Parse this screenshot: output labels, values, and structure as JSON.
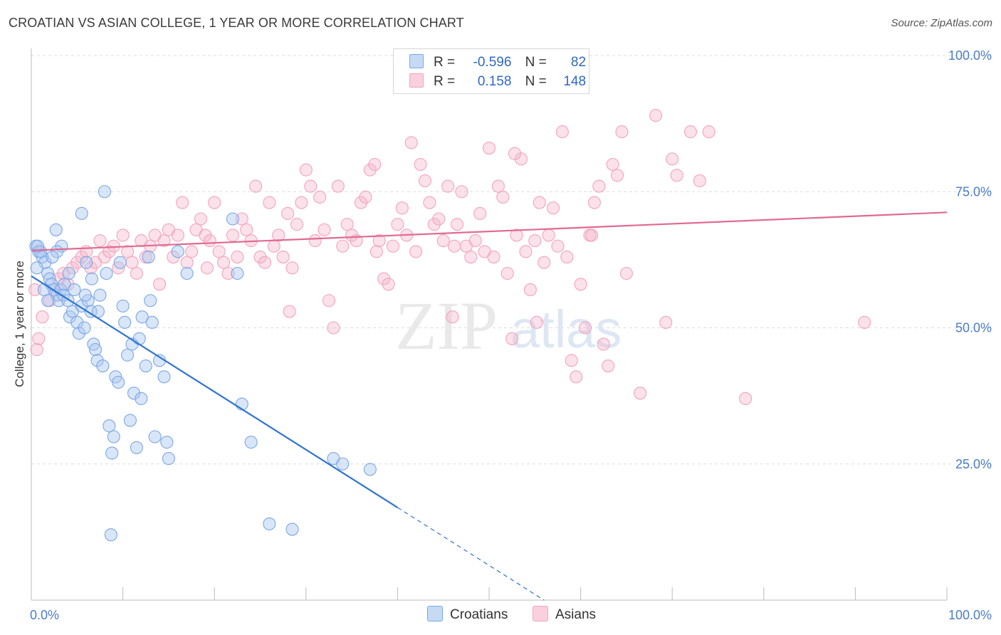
{
  "title": "CROATIAN VS ASIAN COLLEGE, 1 YEAR OR MORE CORRELATION CHART",
  "source": "Source: ZipAtlas.com",
  "watermark": {
    "zip": "ZIP",
    "atlas": "atlas"
  },
  "legend": {
    "croatians": {
      "r_label": "R =",
      "r_value": "-0.596",
      "n_label": "N =",
      "n_value": "82",
      "color": "#7aa7e6"
    },
    "asians": {
      "r_label": "R =",
      "r_value": "0.158",
      "n_label": "N =",
      "n_value": "148",
      "color": "#f3a3bd"
    }
  },
  "bottom_legend": {
    "croatians": "Croatians",
    "asians": "Asians"
  },
  "chart_data": {
    "type": "scatter",
    "title": "CROATIAN VS ASIAN COLLEGE, 1 YEAR OR MORE CORRELATION CHART",
    "xlabel": "",
    "ylabel": "College, 1 year or more",
    "xlim": [
      0,
      100
    ],
    "ylim": [
      0,
      100
    ],
    "x_tick_labels": {
      "min": "0.0%",
      "max": "100.0%"
    },
    "y_ticks": [
      {
        "value": 25,
        "label": "25.0%"
      },
      {
        "value": 50,
        "label": "50.0%"
      },
      {
        "value": 75,
        "label": "75.0%"
      },
      {
        "value": 100,
        "label": "100.0%"
      }
    ],
    "series": [
      {
        "name": "Croatians",
        "color": "#7aa7e6",
        "line_color": "#2f74d0",
        "trend": {
          "x0": 0,
          "y0": 59.5,
          "x1": 40,
          "y1": 17.0,
          "dash_to_x": 56,
          "dash_to_y": 0
        },
        "points": [
          [
            0.5,
            65
          ],
          [
            0.8,
            64
          ],
          [
            1.2,
            63
          ],
          [
            1.5,
            62
          ],
          [
            1.8,
            60
          ],
          [
            2,
            59
          ],
          [
            2.2,
            58
          ],
          [
            2.5,
            57
          ],
          [
            2.8,
            56
          ],
          [
            3,
            55
          ],
          [
            3.2,
            57
          ],
          [
            3.5,
            56
          ],
          [
            4,
            55
          ],
          [
            4.2,
            52
          ],
          [
            4.5,
            53
          ],
          [
            5,
            51
          ],
          [
            5.2,
            49
          ],
          [
            5.5,
            54
          ],
          [
            5.8,
            50
          ],
          [
            6,
            62
          ],
          [
            6.2,
            55
          ],
          [
            6.5,
            53
          ],
          [
            6.8,
            47
          ],
          [
            7,
            46
          ],
          [
            7.2,
            44
          ],
          [
            7.5,
            56
          ],
          [
            7.8,
            43
          ],
          [
            8,
            75
          ],
          [
            8.2,
            60
          ],
          [
            8.5,
            32
          ],
          [
            8.8,
            27
          ],
          [
            9,
            30
          ],
          [
            9.2,
            41
          ],
          [
            9.5,
            40
          ],
          [
            10,
            54
          ],
          [
            10.2,
            51
          ],
          [
            10.5,
            45
          ],
          [
            10.8,
            33
          ],
          [
            11,
            47
          ],
          [
            11.2,
            38
          ],
          [
            11.5,
            28
          ],
          [
            12,
            37
          ],
          [
            12.5,
            43
          ],
          [
            12.8,
            63
          ],
          [
            13,
            55
          ],
          [
            13.2,
            51
          ],
          [
            13.5,
            30
          ],
          [
            14,
            44
          ],
          [
            14.5,
            41
          ],
          [
            14.8,
            29
          ],
          [
            15,
            26
          ],
          [
            16,
            64
          ],
          [
            17,
            60
          ],
          [
            22,
            70
          ],
          [
            22.5,
            60
          ],
          [
            23,
            36
          ],
          [
            24,
            29
          ],
          [
            33,
            26
          ],
          [
            34,
            25
          ],
          [
            37,
            24
          ],
          [
            26,
            14
          ],
          [
            28.5,
            13
          ],
          [
            8.7,
            12
          ],
          [
            2.7,
            68
          ],
          [
            5.5,
            71
          ],
          [
            1,
            64
          ],
          [
            0.7,
            65
          ],
          [
            3.3,
            65
          ],
          [
            1.8,
            55
          ],
          [
            2.8,
            64
          ],
          [
            3.6,
            58
          ],
          [
            4.1,
            60
          ],
          [
            6.6,
            59
          ],
          [
            7.3,
            53
          ],
          [
            9.7,
            62
          ],
          [
            12.1,
            52
          ],
          [
            2.3,
            63
          ],
          [
            4.7,
            57
          ],
          [
            0.6,
            61
          ],
          [
            1.4,
            57
          ],
          [
            5.9,
            56
          ],
          [
            11.8,
            48
          ]
        ]
      },
      {
        "name": "Asians",
        "color": "#f3a3bd",
        "line_color": "#e06a92",
        "trend": {
          "x0": 0,
          "y0": 64.2,
          "x1": 100,
          "y1": 71.2
        },
        "points": [
          [
            0.4,
            57
          ],
          [
            0.6,
            46
          ],
          [
            0.8,
            48
          ],
          [
            1.2,
            52
          ],
          [
            2,
            55
          ],
          [
            2.5,
            57
          ],
          [
            3,
            59
          ],
          [
            3.5,
            60
          ],
          [
            4,
            58
          ],
          [
            4.5,
            61
          ],
          [
            5,
            62
          ],
          [
            5.5,
            63
          ],
          [
            6,
            64
          ],
          [
            6.5,
            61
          ],
          [
            7,
            62
          ],
          [
            7.5,
            66
          ],
          [
            8,
            63
          ],
          [
            8.5,
            64
          ],
          [
            9,
            65
          ],
          [
            9.5,
            61
          ],
          [
            10,
            67
          ],
          [
            10.5,
            64
          ],
          [
            11,
            62
          ],
          [
            11.5,
            60
          ],
          [
            12,
            66
          ],
          [
            12.5,
            63
          ],
          [
            13,
            65
          ],
          [
            13.5,
            67
          ],
          [
            14,
            58
          ],
          [
            14.5,
            66
          ],
          [
            15,
            68
          ],
          [
            15.5,
            63
          ],
          [
            16,
            67
          ],
          [
            16.5,
            73
          ],
          [
            17,
            62
          ],
          [
            17.5,
            64
          ],
          [
            18,
            68
          ],
          [
            18.5,
            70
          ],
          [
            19,
            67
          ],
          [
            19.5,
            66
          ],
          [
            20,
            73
          ],
          [
            20.5,
            64
          ],
          [
            21,
            62
          ],
          [
            21.5,
            60
          ],
          [
            22,
            67
          ],
          [
            22.5,
            63
          ],
          [
            23,
            70
          ],
          [
            23.5,
            68
          ],
          [
            24,
            66
          ],
          [
            24.5,
            76
          ],
          [
            25,
            63
          ],
          [
            25.5,
            62
          ],
          [
            26,
            73
          ],
          [
            26.5,
            65
          ],
          [
            27,
            67
          ],
          [
            27.5,
            63
          ],
          [
            28,
            71
          ],
          [
            28.5,
            61
          ],
          [
            29,
            69
          ],
          [
            29.5,
            73
          ],
          [
            30,
            79
          ],
          [
            30.5,
            76
          ],
          [
            31,
            66
          ],
          [
            31.5,
            74
          ],
          [
            32,
            68
          ],
          [
            32.5,
            55
          ],
          [
            33,
            50
          ],
          [
            33.5,
            76
          ],
          [
            34,
            65
          ],
          [
            34.5,
            69
          ],
          [
            35,
            67
          ],
          [
            35.5,
            66
          ],
          [
            36,
            73
          ],
          [
            36.5,
            74
          ],
          [
            37,
            79
          ],
          [
            37.5,
            80
          ],
          [
            38,
            66
          ],
          [
            38.5,
            59
          ],
          [
            39,
            58
          ],
          [
            39.5,
            65
          ],
          [
            40,
            69
          ],
          [
            40.5,
            72
          ],
          [
            41,
            67
          ],
          [
            41.5,
            84
          ],
          [
            42,
            64
          ],
          [
            42.5,
            80
          ],
          [
            43,
            77
          ],
          [
            43.5,
            73
          ],
          [
            44,
            69
          ],
          [
            44.5,
            70
          ],
          [
            45,
            66
          ],
          [
            45.5,
            76
          ],
          [
            46,
            52
          ],
          [
            46.5,
            69
          ],
          [
            47,
            75
          ],
          [
            47.5,
            65
          ],
          [
            48,
            63
          ],
          [
            48.5,
            66
          ],
          [
            49,
            71
          ],
          [
            49.5,
            64
          ],
          [
            50,
            83
          ],
          [
            50.5,
            63
          ],
          [
            51,
            76
          ],
          [
            51.5,
            74
          ],
          [
            52,
            60
          ],
          [
            52.5,
            48
          ],
          [
            53,
            67
          ],
          [
            53.5,
            81
          ],
          [
            54,
            64
          ],
          [
            54.5,
            57
          ],
          [
            55,
            66
          ],
          [
            55.5,
            73
          ],
          [
            56,
            62
          ],
          [
            56.5,
            67
          ],
          [
            57,
            72
          ],
          [
            57.5,
            65
          ],
          [
            58,
            86
          ],
          [
            58.5,
            63
          ],
          [
            59,
            44
          ],
          [
            59.5,
            41
          ],
          [
            60,
            58
          ],
          [
            60.5,
            50
          ],
          [
            61,
            67
          ],
          [
            61.5,
            73
          ],
          [
            62,
            76
          ],
          [
            62.5,
            47
          ],
          [
            63,
            43
          ],
          [
            63.5,
            80
          ],
          [
            64,
            78
          ],
          [
            64.5,
            86
          ],
          [
            65,
            60
          ],
          [
            70,
            81
          ],
          [
            70.5,
            78
          ],
          [
            72,
            86
          ],
          [
            73,
            77
          ],
          [
            74,
            86
          ],
          [
            78,
            37
          ],
          [
            91,
            51
          ],
          [
            19.2,
            61
          ],
          [
            28.2,
            53
          ],
          [
            37.7,
            64
          ],
          [
            46.2,
            65
          ],
          [
            55.2,
            51
          ],
          [
            61.2,
            67
          ],
          [
            52.8,
            82
          ],
          [
            66.5,
            38
          ],
          [
            68.2,
            89
          ],
          [
            69.3,
            51
          ]
        ]
      }
    ]
  }
}
